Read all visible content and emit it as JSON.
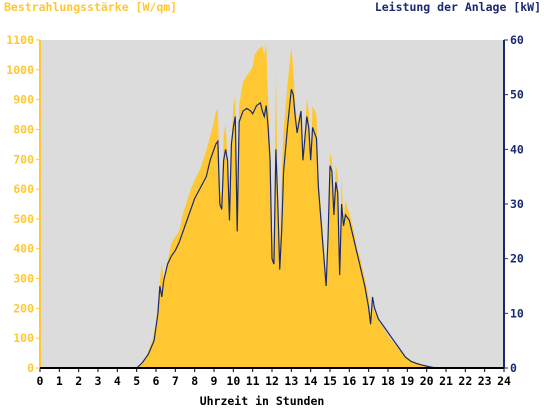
{
  "chart_data": {
    "type": "area",
    "title_left": "Bestrahlungsstärke [W/qm]",
    "title_right": "Leistung der Anlage [kW]",
    "xlabel": "Uhrzeit in Stunden",
    "xlim": [
      0,
      24
    ],
    "ylim_left": [
      0,
      1100
    ],
    "ylim_right": [
      0,
      60
    ],
    "x_ticks": [
      "0",
      "1",
      "2",
      "3",
      "4",
      "5",
      "6",
      "7",
      "8",
      "9",
      "10",
      "11",
      "12",
      "13",
      "14",
      "15",
      "16",
      "17",
      "18",
      "19",
      "20",
      "21",
      "22",
      "23",
      "24"
    ],
    "y_left_ticks": [
      "0",
      "100",
      "200",
      "300",
      "400",
      "500",
      "600",
      "700",
      "800",
      "900",
      "1000",
      "1100"
    ],
    "y_right_ticks": [
      "0",
      "10",
      "20",
      "30",
      "40",
      "50",
      "60"
    ],
    "grid": false,
    "background": "#dcdcdc",
    "series": [
      {
        "axis": "left",
        "kind": "area",
        "color": "#ffc833",
        "points": [
          [
            0,
            0
          ],
          [
            4.9,
            0
          ],
          [
            5.2,
            10
          ],
          [
            5.5,
            40
          ],
          [
            5.8,
            90
          ],
          [
            6.0,
            150
          ],
          [
            6.2,
            290
          ],
          [
            6.3,
            350
          ],
          [
            6.4,
            300
          ],
          [
            6.6,
            360
          ],
          [
            6.8,
            420
          ],
          [
            7.0,
            440
          ],
          [
            7.2,
            460
          ],
          [
            7.4,
            520
          ],
          [
            7.6,
            560
          ],
          [
            7.8,
            600
          ],
          [
            8.0,
            630
          ],
          [
            8.3,
            670
          ],
          [
            8.6,
            730
          ],
          [
            8.9,
            800
          ],
          [
            9.1,
            860
          ],
          [
            9.2,
            870
          ],
          [
            9.3,
            600
          ],
          [
            9.4,
            570
          ],
          [
            9.5,
            780
          ],
          [
            9.6,
            820
          ],
          [
            9.7,
            700
          ],
          [
            9.8,
            560
          ],
          [
            9.9,
            750
          ],
          [
            10.0,
            880
          ],
          [
            10.1,
            910
          ],
          [
            10.2,
            600
          ],
          [
            10.3,
            880
          ],
          [
            10.5,
            960
          ],
          [
            10.7,
            980
          ],
          [
            10.9,
            1000
          ],
          [
            11.0,
            1010
          ],
          [
            11.1,
            1050
          ],
          [
            11.3,
            1070
          ],
          [
            11.5,
            1080
          ],
          [
            11.6,
            1050
          ],
          [
            11.7,
            1090
          ],
          [
            11.8,
            900
          ],
          [
            11.9,
            750
          ],
          [
            12.0,
            470
          ],
          [
            12.1,
            360
          ],
          [
            12.2,
            1000
          ],
          [
            12.3,
            600
          ],
          [
            12.4,
            400
          ],
          [
            12.5,
            650
          ],
          [
            12.6,
            800
          ],
          [
            12.8,
            950
          ],
          [
            13.0,
            1080
          ],
          [
            13.1,
            1000
          ],
          [
            13.2,
            890
          ],
          [
            13.3,
            820
          ],
          [
            13.4,
            850
          ],
          [
            13.5,
            870
          ],
          [
            13.6,
            700
          ],
          [
            13.8,
            900
          ],
          [
            13.9,
            860
          ],
          [
            14.0,
            720
          ],
          [
            14.1,
            880
          ],
          [
            14.3,
            850
          ],
          [
            14.4,
            640
          ],
          [
            14.6,
            480
          ],
          [
            14.8,
            300
          ],
          [
            14.9,
            470
          ],
          [
            15.0,
            720
          ],
          [
            15.1,
            700
          ],
          [
            15.2,
            540
          ],
          [
            15.3,
            680
          ],
          [
            15.4,
            650
          ],
          [
            15.5,
            360
          ],
          [
            15.6,
            640
          ],
          [
            15.7,
            500
          ],
          [
            15.8,
            560
          ],
          [
            16.0,
            520
          ],
          [
            16.2,
            470
          ],
          [
            16.4,
            400
          ],
          [
            16.6,
            360
          ],
          [
            16.8,
            300
          ],
          [
            17.0,
            240
          ],
          [
            17.1,
            170
          ],
          [
            17.2,
            220
          ],
          [
            17.3,
            190
          ],
          [
            17.5,
            160
          ],
          [
            17.8,
            130
          ],
          [
            18.0,
            110
          ],
          [
            18.3,
            85
          ],
          [
            18.6,
            60
          ],
          [
            18.9,
            40
          ],
          [
            19.2,
            25
          ],
          [
            19.5,
            18
          ],
          [
            19.8,
            10
          ],
          [
            20.1,
            5
          ],
          [
            20.4,
            0
          ],
          [
            24,
            0
          ]
        ]
      },
      {
        "axis": "right",
        "kind": "line",
        "color": "#1a2a6e",
        "points": [
          [
            0,
            0
          ],
          [
            5.0,
            0
          ],
          [
            5.3,
            1
          ],
          [
            5.6,
            2.5
          ],
          [
            5.9,
            5
          ],
          [
            6.1,
            10
          ],
          [
            6.2,
            15
          ],
          [
            6.3,
            13
          ],
          [
            6.4,
            16
          ],
          [
            6.6,
            19
          ],
          [
            6.8,
            20.5
          ],
          [
            7.0,
            21.5
          ],
          [
            7.2,
            23
          ],
          [
            7.5,
            26
          ],
          [
            7.8,
            29
          ],
          [
            8.0,
            31
          ],
          [
            8.3,
            33
          ],
          [
            8.6,
            35
          ],
          [
            8.8,
            38
          ],
          [
            9.0,
            40
          ],
          [
            9.1,
            41
          ],
          [
            9.2,
            41.5
          ],
          [
            9.3,
            30
          ],
          [
            9.4,
            29
          ],
          [
            9.5,
            38
          ],
          [
            9.6,
            40
          ],
          [
            9.7,
            38
          ],
          [
            9.8,
            27
          ],
          [
            9.9,
            41
          ],
          [
            10.0,
            44
          ],
          [
            10.1,
            46
          ],
          [
            10.2,
            25
          ],
          [
            10.3,
            45
          ],
          [
            10.5,
            47
          ],
          [
            10.7,
            47.5
          ],
          [
            10.9,
            47
          ],
          [
            11.0,
            46.5
          ],
          [
            11.2,
            48
          ],
          [
            11.4,
            48.5
          ],
          [
            11.5,
            47
          ],
          [
            11.6,
            46
          ],
          [
            11.7,
            48
          ],
          [
            11.8,
            44
          ],
          [
            11.9,
            38
          ],
          [
            12.0,
            20
          ],
          [
            12.1,
            19
          ],
          [
            12.2,
            40
          ],
          [
            12.3,
            30
          ],
          [
            12.4,
            18
          ],
          [
            12.5,
            25
          ],
          [
            12.6,
            36
          ],
          [
            12.8,
            44
          ],
          [
            13.0,
            51
          ],
          [
            13.1,
            50
          ],
          [
            13.2,
            46
          ],
          [
            13.3,
            43
          ],
          [
            13.4,
            45
          ],
          [
            13.5,
            47
          ],
          [
            13.6,
            38
          ],
          [
            13.8,
            46
          ],
          [
            13.9,
            44
          ],
          [
            14.0,
            38
          ],
          [
            14.1,
            44
          ],
          [
            14.2,
            43
          ],
          [
            14.3,
            42
          ],
          [
            14.4,
            33
          ],
          [
            14.6,
            24
          ],
          [
            14.8,
            15
          ],
          [
            14.9,
            24
          ],
          [
            15.0,
            37
          ],
          [
            15.1,
            36
          ],
          [
            15.2,
            28
          ],
          [
            15.3,
            34
          ],
          [
            15.4,
            32
          ],
          [
            15.5,
            17
          ],
          [
            15.6,
            30
          ],
          [
            15.7,
            26
          ],
          [
            15.8,
            28
          ],
          [
            16.0,
            27
          ],
          [
            16.2,
            24
          ],
          [
            16.4,
            21
          ],
          [
            16.6,
            18
          ],
          [
            16.8,
            15
          ],
          [
            17.0,
            11
          ],
          [
            17.1,
            8
          ],
          [
            17.2,
            13
          ],
          [
            17.3,
            11
          ],
          [
            17.5,
            9
          ],
          [
            17.8,
            7.5
          ],
          [
            18.0,
            6.5
          ],
          [
            18.3,
            5
          ],
          [
            18.6,
            3.5
          ],
          [
            18.9,
            2
          ],
          [
            19.2,
            1.2
          ],
          [
            19.5,
            0.8
          ],
          [
            19.8,
            0.5
          ],
          [
            20.2,
            0.2
          ],
          [
            20.5,
            0
          ],
          [
            24,
            0
          ]
        ]
      }
    ]
  }
}
